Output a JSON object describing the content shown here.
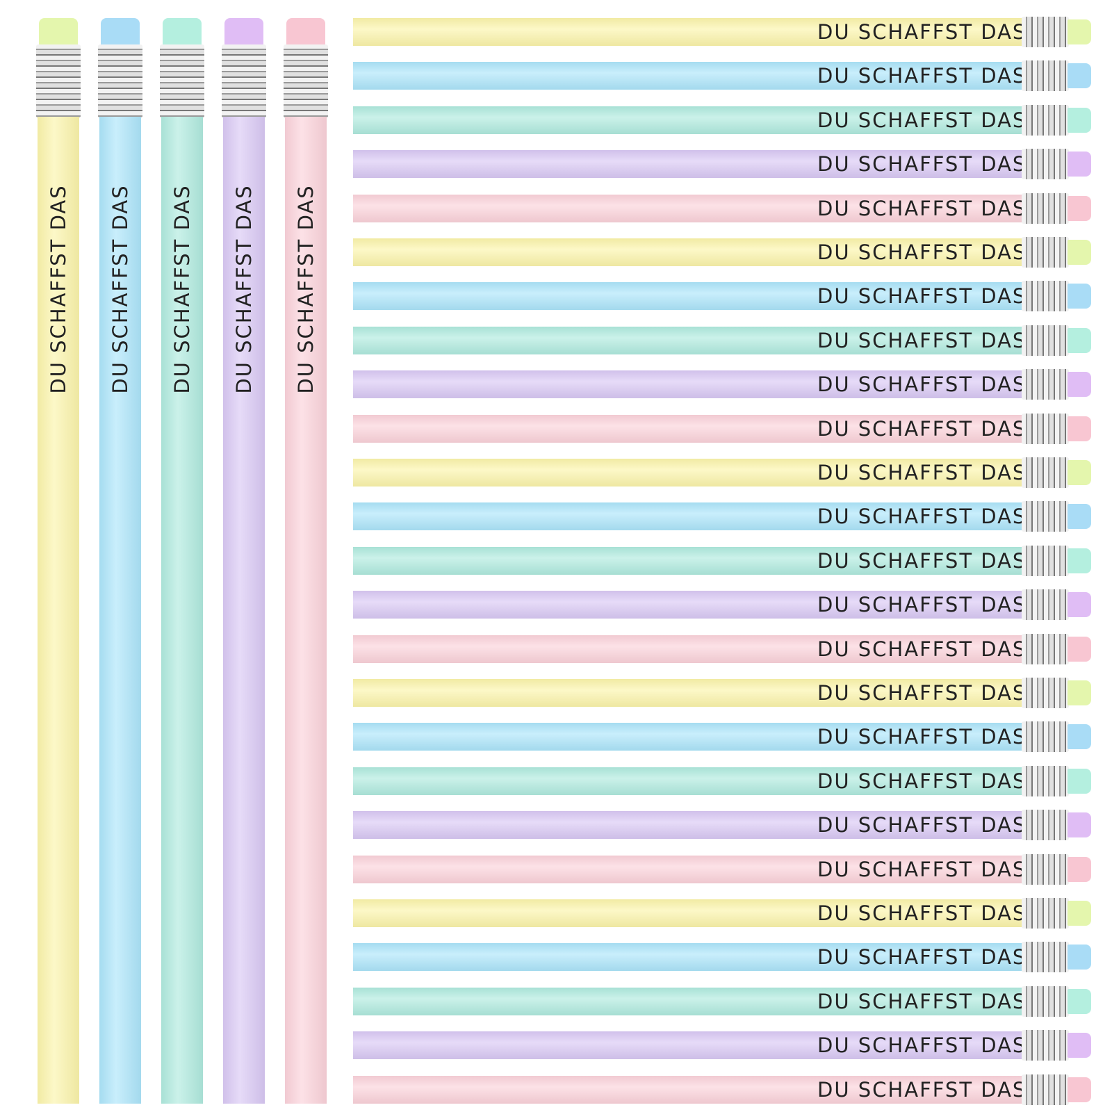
{
  "vertical_pencils": [
    {
      "label": "DU SCHAFFST DAS"
    },
    {
      "label": "DU SCHAFFST DAS"
    },
    {
      "label": "DU SCHAFFST DAS"
    },
    {
      "label": "DU SCHAFFST DAS"
    },
    {
      "label": "DU SCHAFFST DAS"
    }
  ],
  "horizontal_pencils": [
    {
      "label": "DU SCHAFFST DAS"
    },
    {
      "label": "DU SCHAFFST DAS"
    },
    {
      "label": "DU SCHAFFST DAS"
    },
    {
      "label": "DU SCHAFFST DAS"
    },
    {
      "label": "DU SCHAFFST DAS"
    },
    {
      "label": "DU SCHAFFST DAS"
    },
    {
      "label": "DU SCHAFFST DAS"
    },
    {
      "label": "DU SCHAFFST DAS"
    },
    {
      "label": "DU SCHAFFST DAS"
    },
    {
      "label": "DU SCHAFFST DAS"
    },
    {
      "label": "DU SCHAFFST DAS"
    },
    {
      "label": "DU SCHAFFST DAS"
    },
    {
      "label": "DU SCHAFFST DAS"
    },
    {
      "label": "DU SCHAFFST DAS"
    },
    {
      "label": "DU SCHAFFST DAS"
    },
    {
      "label": "DU SCHAFFST DAS"
    },
    {
      "label": "DU SCHAFFST DAS"
    },
    {
      "label": "DU SCHAFFST DAS"
    },
    {
      "label": "DU SCHAFFST DAS"
    },
    {
      "label": "DU SCHAFFST DAS"
    },
    {
      "label": "DU SCHAFFST DAS"
    },
    {
      "label": "DU SCHAFFST DAS"
    },
    {
      "label": "DU SCHAFFST DAS"
    },
    {
      "label": "DU SCHAFFST DAS"
    },
    {
      "label": "DU SCHAFFST DAS"
    }
  ]
}
